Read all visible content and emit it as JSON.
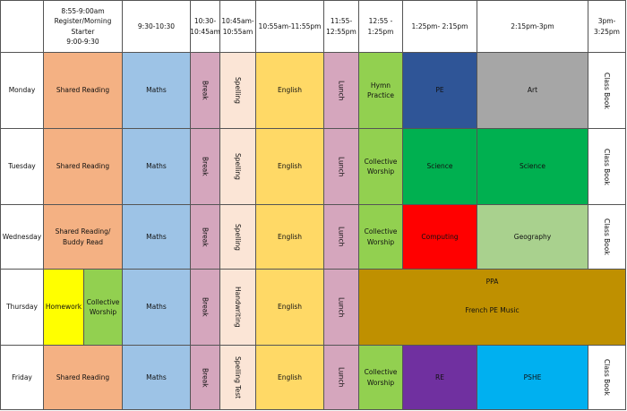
{
  "header": [
    [
      "8:55-9:00am",
      "Register/Morning Starter",
      "9:00-9:30"
    ],
    "9:30-10:30",
    "10:30-10:45am",
    "10:45am-10:55am",
    "10:55am-11:55pm",
    "11:55-12:55pm",
    "12:55 - 1:25pm",
    "1:25pm- 2:15pm",
    "2:15pm-3pm",
    "3pm-3:25pm"
  ],
  "rows": [
    {
      "day": "Monday",
      "cells": [
        "Shared Reading",
        "Maths",
        "Break",
        "Spelling",
        "English",
        "Lunch",
        "Hymn Practice",
        "PE",
        "Art",
        "Class Book"
      ]
    },
    {
      "day": "Tuesday",
      "cells": [
        "Shared Reading",
        "Maths",
        "Break",
        "Spelling",
        "English",
        "Lunch",
        "Collective Worship",
        "Science",
        "Science",
        "Class Book"
      ]
    },
    {
      "day": "Wednesday",
      "cells": [
        "Shared Reading/ Buddy Read",
        "Maths",
        "Break",
        "Spelling",
        "English",
        "Lunch",
        "Collective Worship",
        "Computing",
        "Geography",
        "Class Book"
      ]
    },
    {
      "day": "Thursday",
      "cells": [
        "Homework",
        "Collective Worship",
        "Maths",
        "Break",
        "Handwriting",
        "English",
        "Lunch",
        "PPA",
        "French PE Music"
      ]
    },
    {
      "day": "Friday",
      "cells": [
        "Shared Reading",
        "Maths",
        "Break",
        "Spelling Test",
        "English",
        "Lunch",
        "Collective Worship",
        "RE",
        "PSHE",
        "Class Book"
      ]
    }
  ]
}
